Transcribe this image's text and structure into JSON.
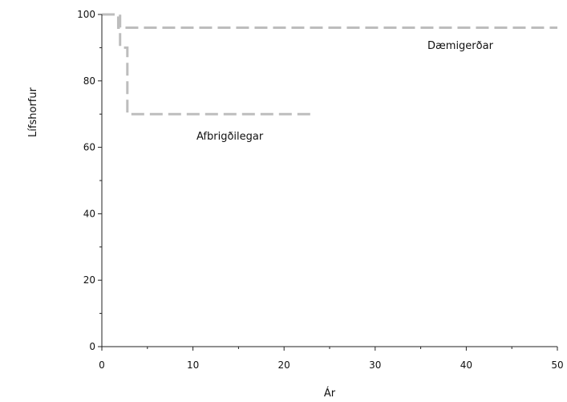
{
  "chart_data": {
    "type": "line",
    "xlabel": "Ár",
    "ylabel": "Lífshorfur",
    "xlim": [
      0,
      50
    ],
    "ylim": [
      0,
      100
    ],
    "xticks": [
      0,
      10,
      20,
      30,
      40,
      50
    ],
    "yticks": [
      0,
      20,
      40,
      60,
      80,
      100
    ],
    "grid": false,
    "series": [
      {
        "name": "Dæmigerðar",
        "color": "#bdbdbd",
        "x": [
          0,
          1.8,
          1.8,
          5,
          50
        ],
        "y": [
          100,
          100,
          96,
          96,
          96
        ]
      },
      {
        "name": "Afbrigðilegar",
        "color": "#bdbdbd",
        "x": [
          0,
          2,
          2,
          2.8,
          2.8,
          23
        ],
        "y": [
          100,
          100,
          90,
          90,
          70,
          70
        ]
      }
    ]
  }
}
